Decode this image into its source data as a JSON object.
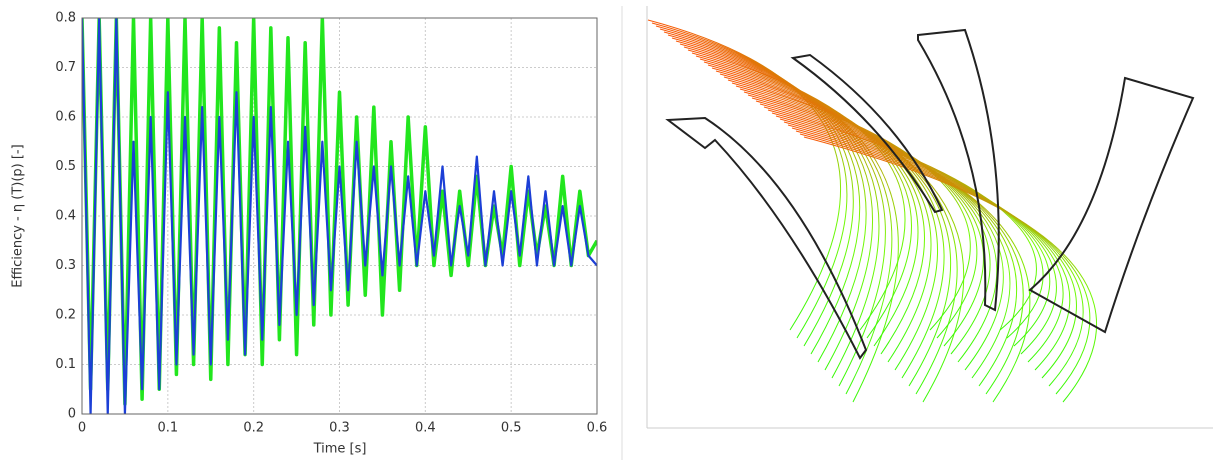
{
  "chart_data": {
    "type": "line",
    "xlabel": "Time [s]",
    "ylabel": "Efficiency - η (T)(p) [-]",
    "x": [
      0,
      0.01,
      0.02,
      0.03,
      0.04,
      0.05,
      0.06,
      0.07,
      0.08,
      0.09,
      0.1,
      0.11,
      0.12,
      0.13,
      0.14,
      0.15,
      0.16,
      0.17,
      0.18,
      0.19,
      0.2,
      0.21,
      0.22,
      0.23,
      0.24,
      0.25,
      0.26,
      0.27,
      0.28,
      0.29,
      0.3,
      0.31,
      0.32,
      0.33,
      0.34,
      0.35,
      0.36,
      0.37,
      0.38,
      0.39,
      0.4,
      0.41,
      0.42,
      0.43,
      0.44,
      0.45,
      0.46,
      0.47,
      0.48,
      0.49,
      0.5,
      0.51,
      0.52,
      0.53,
      0.54,
      0.55,
      0.56,
      0.57,
      0.58,
      0.59,
      0.6
    ],
    "series": [
      {
        "color": "#22e61e",
        "values": [
          0.8,
          0.05,
          0.8,
          0.05,
          0.8,
          0.02,
          0.8,
          0.03,
          0.8,
          0.05,
          0.8,
          0.08,
          0.8,
          0.1,
          0.8,
          0.07,
          0.78,
          0.1,
          0.75,
          0.12,
          0.8,
          0.1,
          0.78,
          0.15,
          0.76,
          0.12,
          0.75,
          0.18,
          0.8,
          0.2,
          0.65,
          0.22,
          0.6,
          0.24,
          0.62,
          0.2,
          0.55,
          0.25,
          0.6,
          0.3,
          0.58,
          0.3,
          0.45,
          0.28,
          0.45,
          0.3,
          0.48,
          0.3,
          0.42,
          0.32,
          0.5,
          0.3,
          0.45,
          0.32,
          0.42,
          0.3,
          0.48,
          0.3,
          0.45,
          0.32,
          0.35
        ]
      },
      {
        "color": "#1c3fd6",
        "values": [
          0.8,
          0,
          0.8,
          0,
          0.8,
          0,
          0.55,
          0.05,
          0.6,
          0.05,
          0.65,
          0.1,
          0.6,
          0.12,
          0.62,
          0.1,
          0.6,
          0.15,
          0.65,
          0.12,
          0.6,
          0.15,
          0.62,
          0.18,
          0.55,
          0.2,
          0.58,
          0.22,
          0.55,
          0.25,
          0.5,
          0.25,
          0.55,
          0.3,
          0.5,
          0.28,
          0.5,
          0.3,
          0.48,
          0.3,
          0.45,
          0.32,
          0.5,
          0.3,
          0.42,
          0.32,
          0.52,
          0.3,
          0.45,
          0.3,
          0.45,
          0.32,
          0.48,
          0.3,
          0.45,
          0.3,
          0.42,
          0.3,
          0.42,
          0.32,
          0.3
        ]
      }
    ],
    "xlim": [
      0,
      0.6
    ],
    "xticks": [
      0,
      0.1,
      0.2,
      0.3,
      0.4,
      0.5,
      0.6
    ],
    "ylim": [
      0,
      0.8
    ],
    "yticks": [
      0,
      0.1,
      0.2,
      0.3,
      0.4,
      0.5,
      0.6,
      0.7,
      0.8
    ],
    "grid": true
  }
}
